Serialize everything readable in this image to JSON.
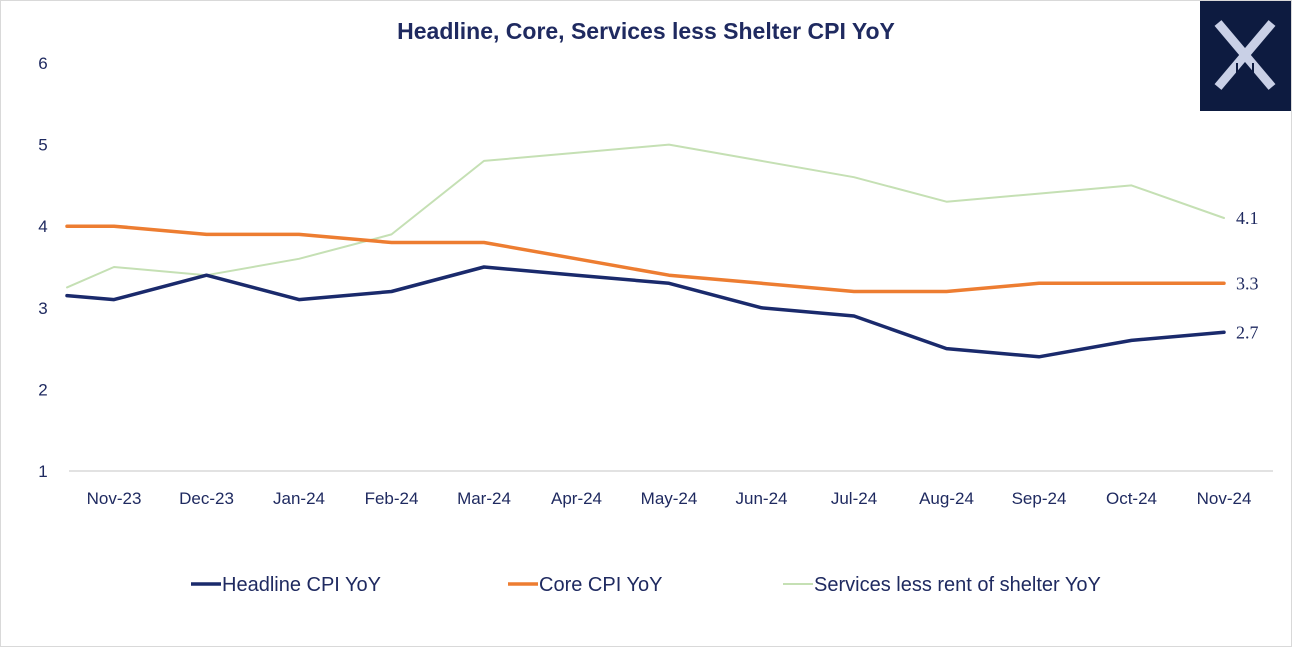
{
  "chart_data": {
    "type": "line",
    "title": "Headline, Core, Services less Shelter CPI YoY",
    "categories": [
      "Nov-23",
      "Dec-23",
      "Jan-24",
      "Feb-24",
      "Mar-24",
      "Apr-24",
      "May-24",
      "Jun-24",
      "Jul-24",
      "Aug-24",
      "Sep-24",
      "Oct-24",
      "Nov-24"
    ],
    "ylim": [
      1,
      6
    ],
    "yticks": [
      1,
      2,
      3,
      4,
      5,
      6
    ],
    "grid": false,
    "legend_position": "bottom",
    "series": [
      {
        "name": "Headline CPI YoY",
        "color": "#1a2a6c",
        "start_value": 3.15,
        "values": [
          3.1,
          3.4,
          3.1,
          3.2,
          3.5,
          3.4,
          3.3,
          3.0,
          2.9,
          2.5,
          2.4,
          2.6,
          2.7
        ],
        "end_label": "2.7"
      },
      {
        "name": "Core CPI YoY",
        "color": "#ed7d31",
        "start_value": 4.0,
        "values": [
          4.0,
          3.9,
          3.9,
          3.8,
          3.8,
          3.6,
          3.4,
          3.3,
          3.2,
          3.2,
          3.3,
          3.3,
          3.3
        ],
        "end_label": "3.3"
      },
      {
        "name": "Services less rent of shelter YoY",
        "color": "#c5e0b4",
        "start_value": 3.25,
        "values": [
          3.5,
          3.4,
          3.6,
          3.9,
          4.8,
          4.9,
          5.0,
          4.8,
          4.6,
          4.3,
          4.4,
          4.5,
          4.1
        ],
        "end_label": "4.1"
      }
    ]
  },
  "logo": {
    "bg_color": "#0d1b40",
    "icon": "x-brand-logo"
  }
}
